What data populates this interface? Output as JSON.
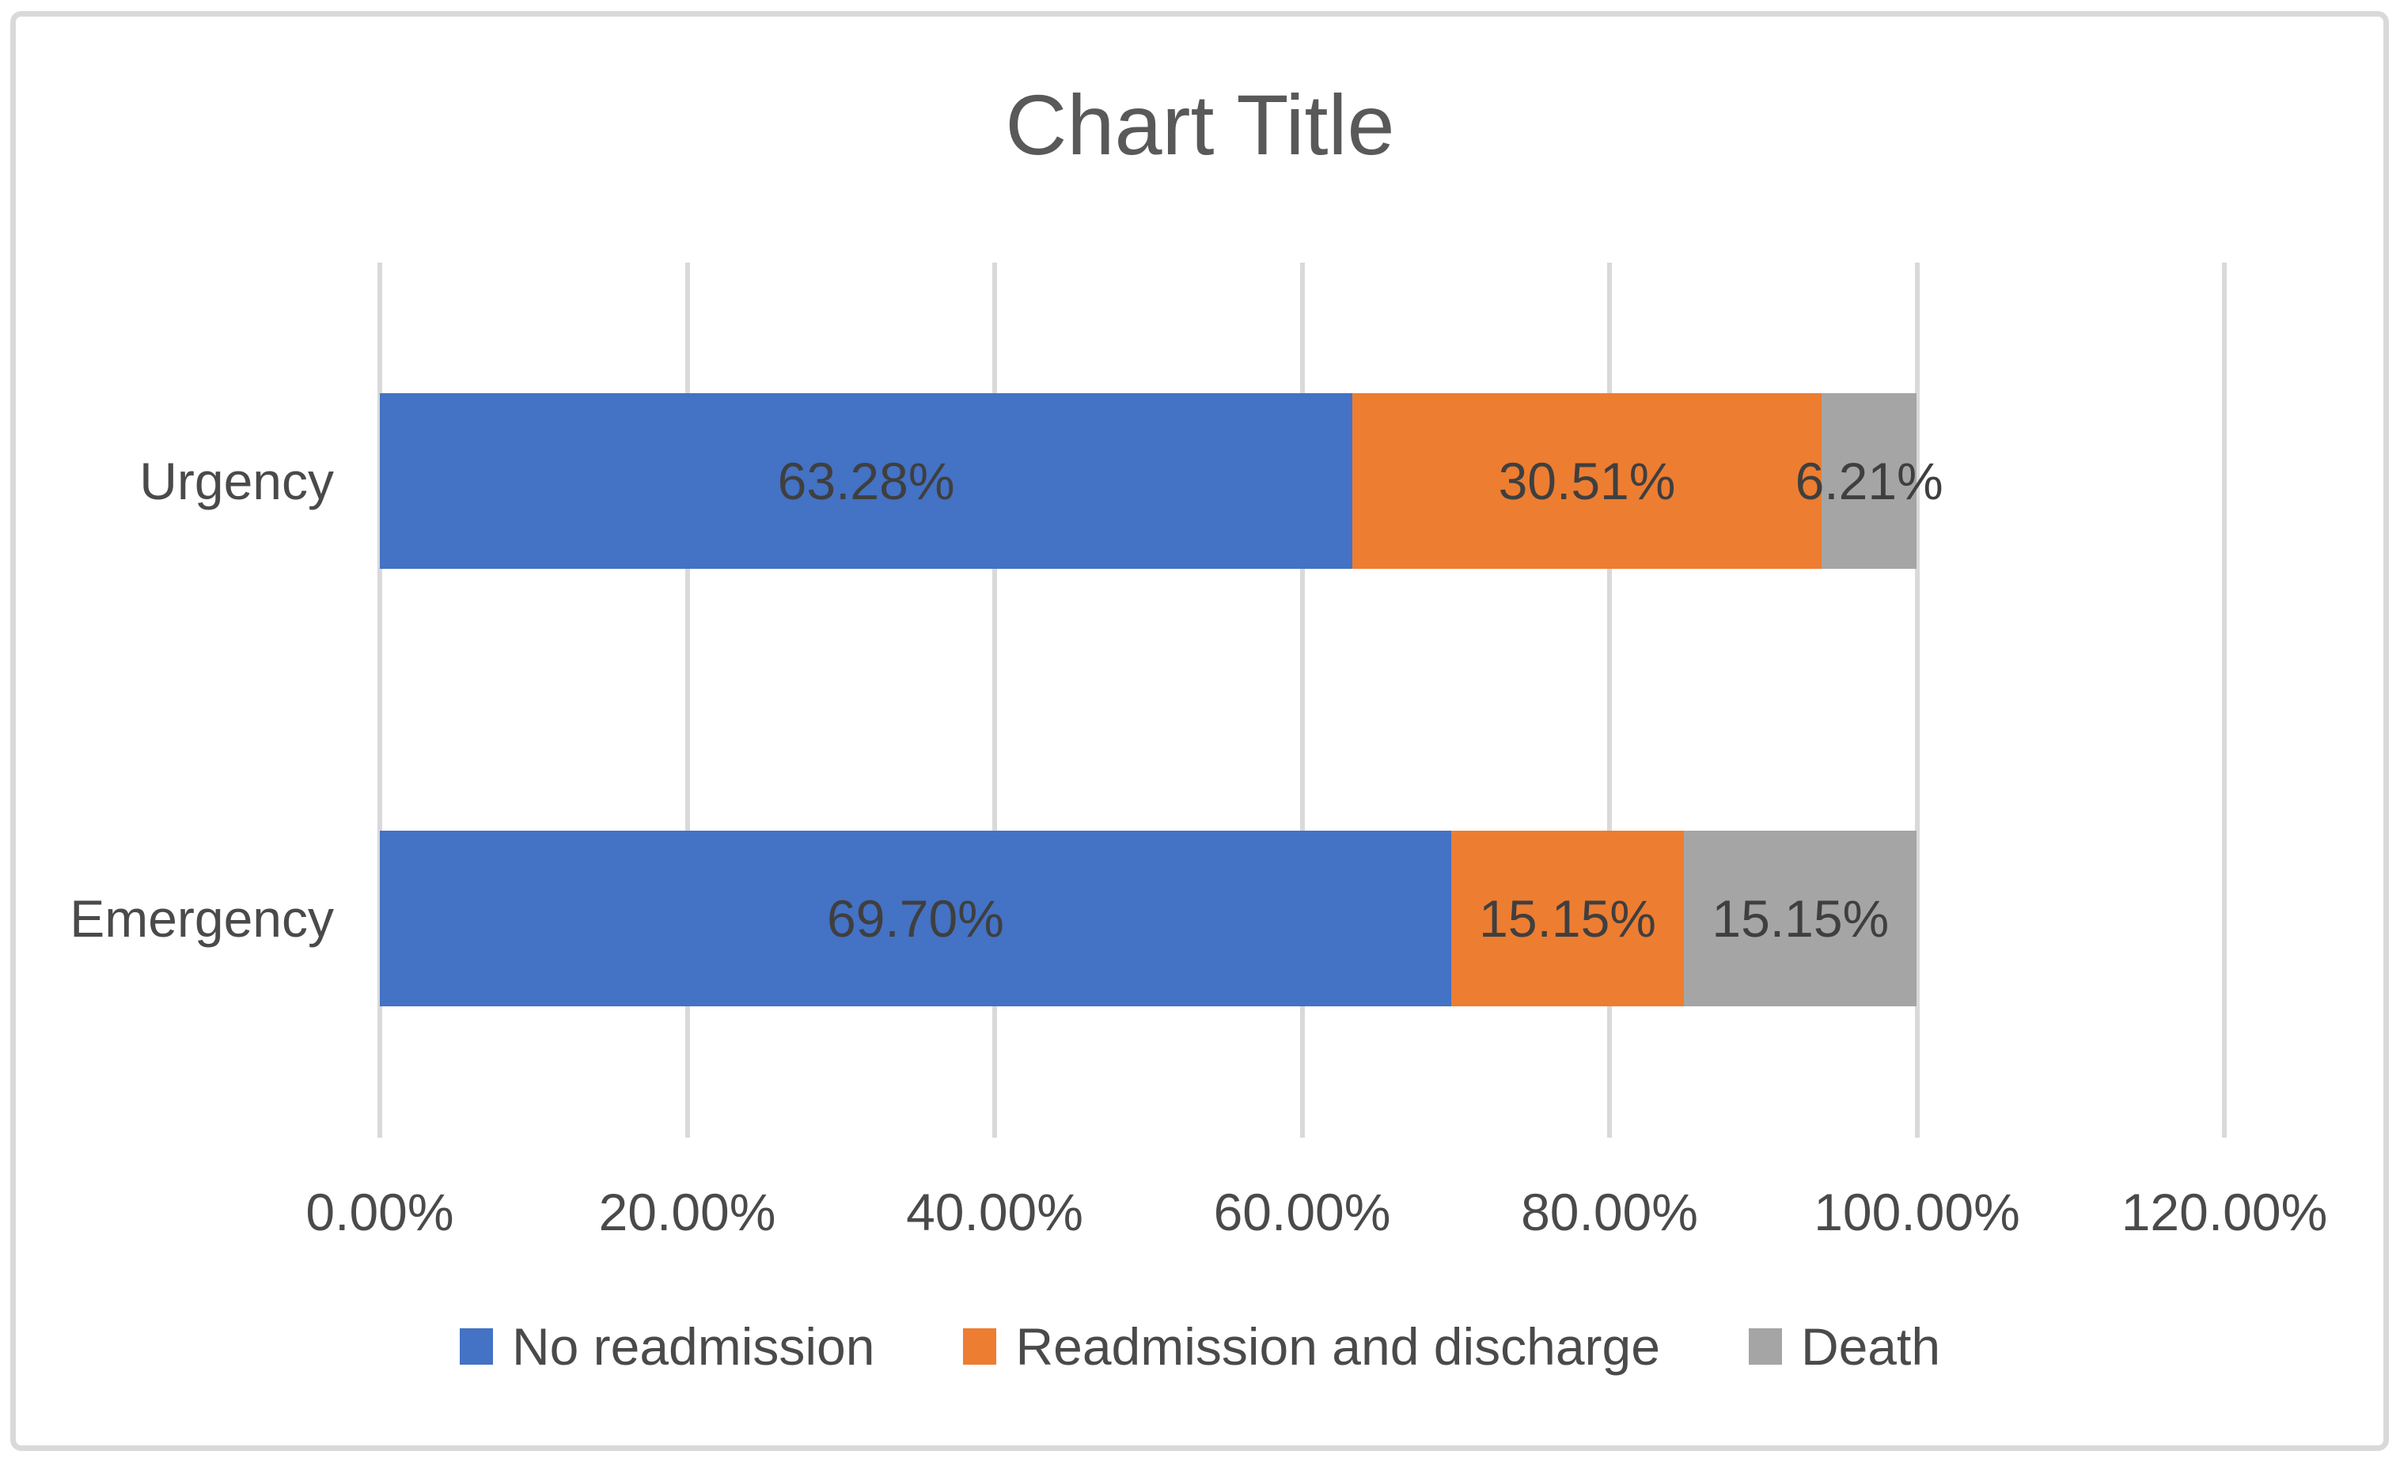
{
  "title": "Chart Title",
  "chart_data": {
    "type": "bar",
    "orientation": "horizontal",
    "stacked": true,
    "title": "Chart Title",
    "categories": [
      "Urgency",
      "Emergency"
    ],
    "series": [
      {
        "name": "No readmission",
        "color": "#4472C4",
        "values": [
          63.28,
          69.7
        ],
        "data_labels": [
          "63.28%",
          "69.70%"
        ]
      },
      {
        "name": "Readmission and discharge",
        "color": "#ED7D31",
        "values": [
          30.51,
          15.15
        ],
        "data_labels": [
          "30.51%",
          "15.15%"
        ]
      },
      {
        "name": "Death",
        "color": "#A5A5A5",
        "values": [
          6.21,
          15.15
        ],
        "data_labels": [
          "6.21%",
          "15.15%"
        ]
      }
    ],
    "x_axis": {
      "min": 0,
      "max": 120,
      "step": 20,
      "unit": "%",
      "tick_labels": [
        "0.00%",
        "20.00%",
        "40.00%",
        "60.00%",
        "80.00%",
        "100.00%",
        "120.00%"
      ]
    },
    "legend": {
      "position": "bottom",
      "entries": [
        "No readmission",
        "Readmission and discharge",
        "Death"
      ]
    },
    "grid": true,
    "style": {
      "title_color": "#595959",
      "text_color": "#4A4A4A",
      "data_label_color": "#3F3F3F",
      "gridline_color": "#D9D9D9",
      "background": "#FFFFFF"
    }
  }
}
